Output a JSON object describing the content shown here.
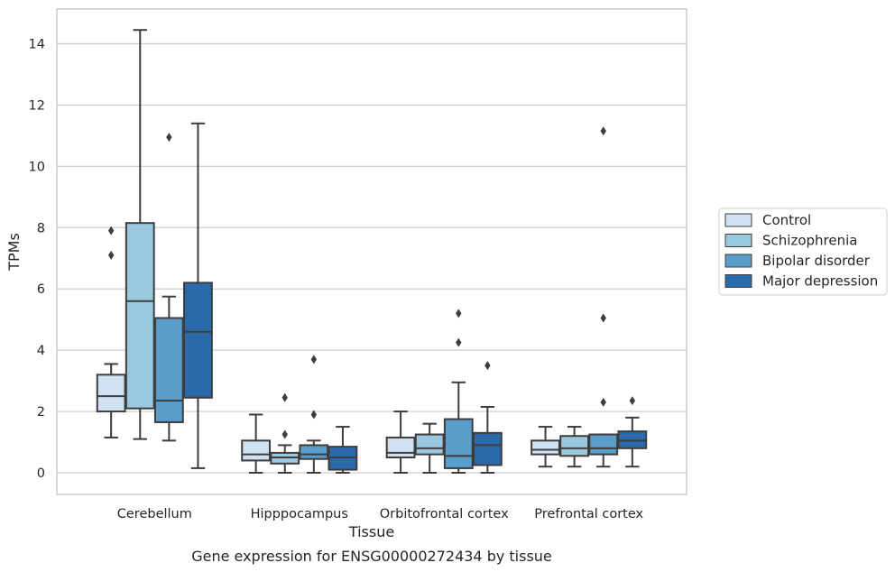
{
  "chart_data": {
    "type": "box",
    "title": "",
    "caption": "Gene expression for ENSG00000272434 by tissue",
    "xlabel": "Tissue",
    "ylabel": "TPMs",
    "ylim": [
      -0.7,
      15.2
    ],
    "yticks": [
      0,
      2,
      4,
      6,
      8,
      10,
      12,
      14
    ],
    "grid": "horizontal",
    "legend_position": "right",
    "categories": [
      "Cerebellum",
      "Hipppocampus",
      "Orbitofrontal cortex",
      "Prefrontal cortex"
    ],
    "series": [
      {
        "name": "Control",
        "color": "#d0e1f2",
        "boxes": [
          {
            "whislo": 1.15,
            "q1": 2.0,
            "median": 2.5,
            "q3": 3.2,
            "whishi": 3.55,
            "fliers": [
              7.9,
              7.1
            ]
          },
          {
            "whislo": 0.0,
            "q1": 0.4,
            "median": 0.6,
            "q3": 1.05,
            "whishi": 1.9,
            "fliers": []
          },
          {
            "whislo": 0.0,
            "q1": 0.5,
            "median": 0.65,
            "q3": 1.15,
            "whishi": 2.0,
            "fliers": []
          },
          {
            "whislo": 0.2,
            "q1": 0.6,
            "median": 0.75,
            "q3": 1.05,
            "whishi": 1.5,
            "fliers": []
          }
        ]
      },
      {
        "name": "Schizophrenia",
        "color": "#9ac8e0",
        "boxes": [
          {
            "whislo": 1.1,
            "q1": 2.1,
            "median": 5.6,
            "q3": 8.15,
            "whishi": 14.45,
            "fliers": []
          },
          {
            "whislo": 0.0,
            "q1": 0.3,
            "median": 0.5,
            "q3": 0.65,
            "whishi": 0.9,
            "fliers": [
              2.45,
              1.25
            ]
          },
          {
            "whislo": 0.0,
            "q1": 0.6,
            "median": 0.8,
            "q3": 1.25,
            "whishi": 1.6,
            "fliers": []
          },
          {
            "whislo": 0.2,
            "q1": 0.55,
            "median": 0.8,
            "q3": 1.2,
            "whishi": 1.5,
            "fliers": []
          }
        ]
      },
      {
        "name": "Bipolar disorder",
        "color": "#5a9dca",
        "boxes": [
          {
            "whislo": 1.05,
            "q1": 1.65,
            "median": 2.35,
            "q3": 5.05,
            "whishi": 5.75,
            "fliers": [
              10.95
            ]
          },
          {
            "whislo": 0.0,
            "q1": 0.45,
            "median": 0.6,
            "q3": 0.9,
            "whishi": 1.05,
            "fliers": [
              3.7,
              1.9
            ]
          },
          {
            "whislo": 0.0,
            "q1": 0.15,
            "median": 0.55,
            "q3": 1.75,
            "whishi": 2.95,
            "fliers": [
              5.2,
              4.25
            ]
          },
          {
            "whislo": 0.2,
            "q1": 0.6,
            "median": 0.8,
            "q3": 1.25,
            "whishi": 1.25,
            "fliers": [
              11.15,
              5.05,
              2.3
            ]
          }
        ]
      },
      {
        "name": "Major depression",
        "color": "#2b6aaa",
        "boxes": [
          {
            "whislo": 0.15,
            "q1": 2.45,
            "median": 4.6,
            "q3": 6.2,
            "whishi": 11.4,
            "fliers": []
          },
          {
            "whislo": 0.0,
            "q1": 0.1,
            "median": 0.5,
            "q3": 0.85,
            "whishi": 1.5,
            "fliers": []
          },
          {
            "whislo": 0.0,
            "q1": 0.25,
            "median": 0.9,
            "q3": 1.3,
            "whishi": 2.15,
            "fliers": [
              3.5
            ]
          },
          {
            "whislo": 0.2,
            "q1": 0.8,
            "median": 1.05,
            "q3": 1.35,
            "whishi": 1.8,
            "fliers": [
              2.35
            ]
          }
        ]
      }
    ]
  }
}
